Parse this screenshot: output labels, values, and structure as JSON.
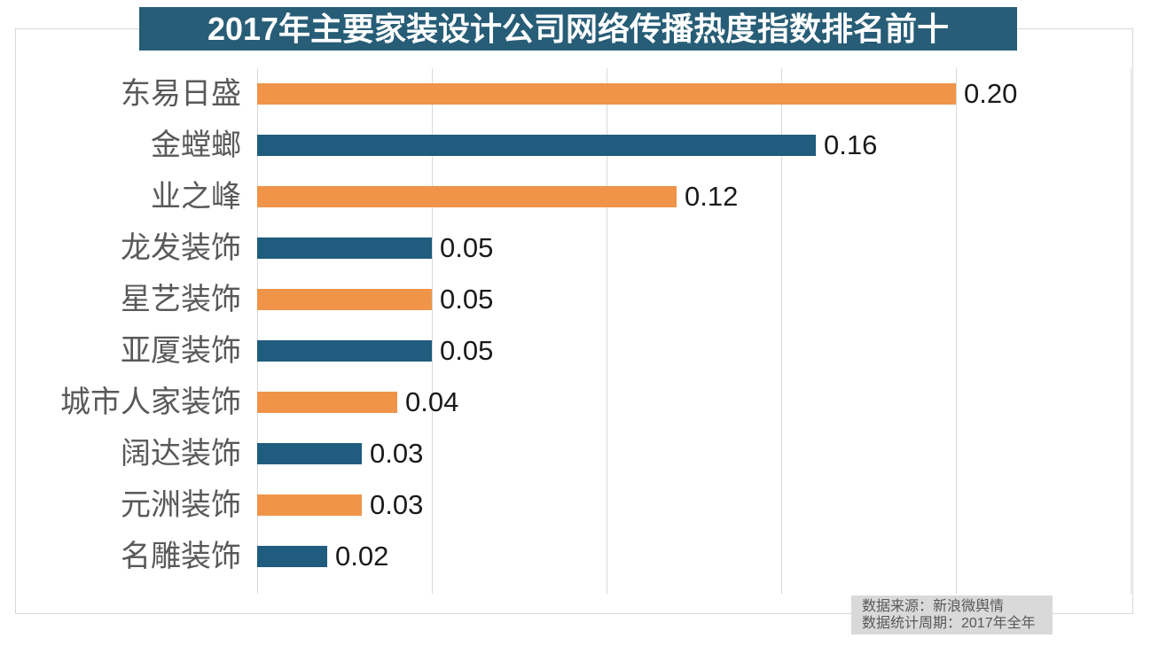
{
  "title": "2017年主要家装设计公司网络传播热度指数排名前十",
  "chart_data": {
    "type": "bar",
    "orientation": "horizontal",
    "title": "2017年主要家装设计公司网络传播热度指数排名前十",
    "categories": [
      "东易日盛",
      "金螳螂",
      "业之峰",
      "龙发装饰",
      "星艺装饰",
      "亚厦装饰",
      "城市人家装饰",
      "阔达装饰",
      "元洲装饰",
      "名雕装饰"
    ],
    "values": [
      0.2,
      0.16,
      0.12,
      0.05,
      0.05,
      0.05,
      0.04,
      0.03,
      0.03,
      0.02
    ],
    "xlim": [
      0,
      0.25
    ],
    "grid_ticks": [
      0,
      0.05,
      0.1,
      0.15,
      0.2,
      0.25
    ],
    "grid": "vertical gridlines, no axis tick labels shown",
    "legend": "none",
    "bar_label_position": "right of bar end",
    "rows": [
      {
        "label": "东易日盛",
        "value": 0.2,
        "value_label": "0.20",
        "color": "#ef9449"
      },
      {
        "label": "金螳螂",
        "value": 0.16,
        "value_label": "0.16",
        "color": "#1f5c7d"
      },
      {
        "label": "业之峰",
        "value": 0.12,
        "value_label": "0.12",
        "color": "#ef9449"
      },
      {
        "label": "龙发装饰",
        "value": 0.05,
        "value_label": "0.05",
        "color": "#1f5c7d"
      },
      {
        "label": "星艺装饰",
        "value": 0.05,
        "value_label": "0.05",
        "color": "#ef9449"
      },
      {
        "label": "亚厦装饰",
        "value": 0.05,
        "value_label": "0.05",
        "color": "#1f5c7d"
      },
      {
        "label": "城市人家装饰",
        "value": 0.04,
        "value_label": "0.04",
        "color": "#ef9449"
      },
      {
        "label": "阔达装饰",
        "value": 0.03,
        "value_label": "0.03",
        "color": "#1f5c7d"
      },
      {
        "label": "元洲装饰",
        "value": 0.03,
        "value_label": "0.03",
        "color": "#ef9449"
      },
      {
        "label": "名雕装饰",
        "value": 0.02,
        "value_label": "0.02",
        "color": "#1f5c7d"
      }
    ]
  },
  "source_note": {
    "line1": "数据来源：新浪微舆情",
    "line2": "数据统计周期：2017年全年"
  },
  "colors": {
    "banner_bg": "#275d76",
    "banner_text": "#ffffff",
    "bar_orange": "#ef9449",
    "bar_blue": "#1f5c7d",
    "grid_line": "#d9d9d9",
    "frame_border": "#d9d9d9",
    "category_text": "#595959",
    "value_text": "#1a1a1a",
    "source_bg": "#d9d9d9",
    "source_text": "#595959",
    "background": "#ffffff"
  }
}
